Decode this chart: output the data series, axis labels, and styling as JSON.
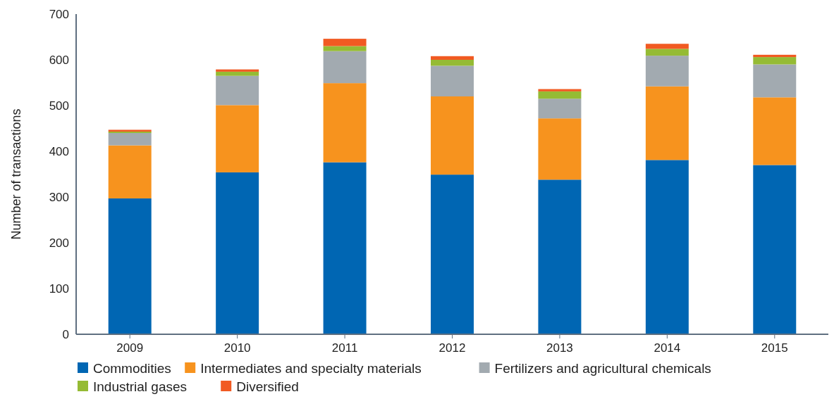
{
  "chart_data": {
    "type": "bar",
    "stacked": true,
    "ylabel": "Number of transactions",
    "categories": [
      "2009",
      "2010",
      "2011",
      "2012",
      "2013",
      "2014",
      "2015"
    ],
    "series": [
      {
        "name": "Commodities",
        "color": "#0066b3",
        "values": [
          297,
          354,
          376,
          349,
          338,
          381,
          370
        ]
      },
      {
        "name": "Intermediates and specialty materials",
        "color": "#f7931e",
        "values": [
          116,
          147,
          173,
          171,
          134,
          161,
          148
        ]
      },
      {
        "name": "Fertilizers and agricultural chemicals",
        "color": "#a2aab0",
        "values": [
          27,
          64,
          70,
          67,
          43,
          67,
          72
        ]
      },
      {
        "name": "Industrial gases",
        "color": "#95bb34",
        "values": [
          3,
          9,
          11,
          13,
          16,
          15,
          16
        ]
      },
      {
        "name": "Diversified",
        "color": "#f15a22",
        "values": [
          4,
          5,
          16,
          8,
          5,
          11,
          5
        ]
      }
    ],
    "ylim": [
      0,
      700
    ],
    "yticks": [
      0,
      100,
      200,
      300,
      400,
      500,
      600,
      700
    ],
    "grid": false,
    "legend": "bottom"
  }
}
